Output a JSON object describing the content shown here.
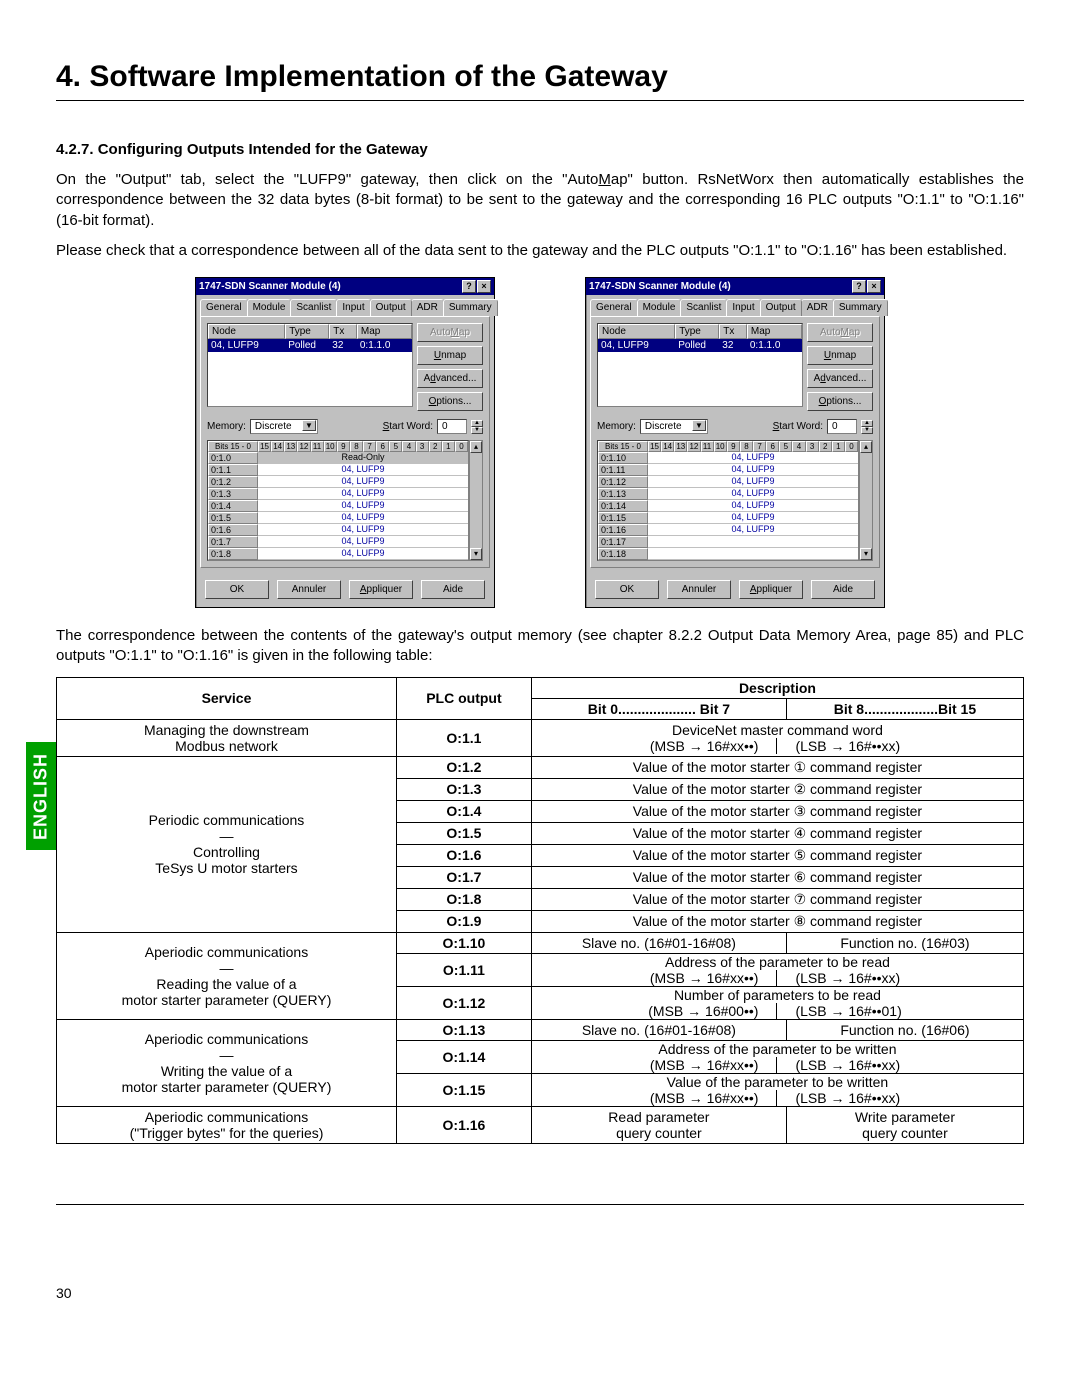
{
  "page": {
    "title": "4. Software Implementation of the Gateway",
    "section_heading": "4.2.7. Configuring Outputs Intended for the Gateway",
    "para1_a": "On the \"Output\" tab, select the \"LUFP9\" gateway, then click on the \"Auto",
    "para1_b": "ap\" button. RsNetWorx then automatically establishes the correspondence between the 32 data bytes (8-bit format) to be sent to the gateway and the corresponding 16 PLC outputs \"O:1.1\" to \"O:1.16\" (16-bit format).",
    "para1_u": "M",
    "para2": "Please check that a correspondence between all of the data sent to the gateway and the PLC outputs \"O:1.1\" to \"O:1.16\" has been established.",
    "side_tab": "ENGLISH",
    "corr_para": "The correspondence between the contents of the gateway's output memory (see chapter 8.2.2 Output Data Memory Area, page 85) and PLC outputs \"O:1.1\" to \"O:1.16\" is given in the following table:",
    "page_number": "30"
  },
  "dialog_common": {
    "title": "1747-SDN Scanner Module (4)",
    "help_btn": "?",
    "close_btn": "×",
    "tabs": [
      "General",
      "Module",
      "Scanlist",
      "Input",
      "Output",
      "ADR",
      "Summary"
    ],
    "active_tab_index": 4,
    "node_head": [
      "Node",
      "Type",
      "Tx",
      "Map"
    ],
    "node_row": [
      "04, LUFP9",
      "Polled",
      "32",
      "0:1.1.0"
    ],
    "btns": {
      "automap": "AutoMap",
      "unmap": "Unmap",
      "advanced": "Advanced...",
      "options": "Options..."
    },
    "memory_label": "Memory:",
    "memory_value": "Discrete",
    "startword_label": "Start Word:",
    "startword_value": "0",
    "bits_label": "Bits 15 - 0",
    "bits": [
      "15",
      "14",
      "13",
      "12",
      "11",
      "10",
      "9",
      "8",
      "7",
      "6",
      "5",
      "4",
      "3",
      "2",
      "1",
      "0"
    ],
    "footer": [
      "OK",
      "Annuler",
      "Appliquer",
      "Aide"
    ]
  },
  "dialog_left": {
    "rows": [
      {
        "label": "0:1.0",
        "val": "Read-Only",
        "readonly": true
      },
      {
        "label": "0:1.1",
        "val": "04, LUFP9"
      },
      {
        "label": "0:1.2",
        "val": "04, LUFP9"
      },
      {
        "label": "0:1.3",
        "val": "04, LUFP9"
      },
      {
        "label": "0:1.4",
        "val": "04, LUFP9"
      },
      {
        "label": "0:1.5",
        "val": "04, LUFP9"
      },
      {
        "label": "0:1.6",
        "val": "04, LUFP9"
      },
      {
        "label": "0:1.7",
        "val": "04, LUFP9"
      },
      {
        "label": "0:1.8",
        "val": "04, LUFP9"
      }
    ]
  },
  "dialog_right": {
    "rows": [
      {
        "label": "0:1.10",
        "val": "04, LUFP9"
      },
      {
        "label": "0:1.11",
        "val": "04, LUFP9"
      },
      {
        "label": "0:1.12",
        "val": "04, LUFP9"
      },
      {
        "label": "0:1.13",
        "val": "04, LUFP9"
      },
      {
        "label": "0:1.14",
        "val": "04, LUFP9"
      },
      {
        "label": "0:1.15",
        "val": "04, LUFP9"
      },
      {
        "label": "0:1.16",
        "val": "04, LUFP9"
      },
      {
        "label": "0:1.17",
        "val": ""
      },
      {
        "label": "0:1.18",
        "val": ""
      }
    ]
  },
  "table": {
    "head": {
      "service": "Service",
      "plc": "PLC output",
      "desc": "Description",
      "bit07": "Bit 0.................... Bit 7",
      "bit815": "Bit 8...................Bit 15"
    },
    "groups": [
      {
        "service_lines": [
          "Managing the downstream",
          "Modbus network"
        ],
        "rows": [
          {
            "plc": "O:1.1",
            "top": "DeviceNet master command word",
            "left": "(MSB → 16#xx••)",
            "right": "(LSB → 16#••xx)"
          }
        ]
      },
      {
        "service_lines": [
          "Periodic communications",
          "—",
          "Controlling",
          "TeSys U motor starters"
        ],
        "rows": [
          {
            "plc": "O:1.2",
            "full": "Value of the motor starter ① command register"
          },
          {
            "plc": "O:1.3",
            "full": "Value of the motor starter ② command register"
          },
          {
            "plc": "O:1.4",
            "full": "Value of the motor starter ③ command register"
          },
          {
            "plc": "O:1.5",
            "full": "Value of the motor starter ④ command register"
          },
          {
            "plc": "O:1.6",
            "full": "Value of the motor starter ⑤ command register"
          },
          {
            "plc": "O:1.7",
            "full": "Value of the motor starter ⑥ command register"
          },
          {
            "plc": "O:1.8",
            "full": "Value of the motor starter ⑦ command register"
          },
          {
            "plc": "O:1.9",
            "full": "Value of the motor starter ⑧ command register"
          }
        ]
      },
      {
        "service_lines": [
          "Aperiodic communications",
          "—",
          "Reading the value of a",
          "motor starter parameter (QUERY)"
        ],
        "rows": [
          {
            "plc": "O:1.10",
            "left": "Slave no. (16#01-16#08)",
            "right": "Function no. (16#03)",
            "split_only": true
          },
          {
            "plc": "O:1.11",
            "top": "Address of the parameter to be read",
            "left": "(MSB → 16#xx••)",
            "right": "(LSB → 16#••xx)"
          },
          {
            "plc": "O:1.12",
            "top": "Number of parameters to be read",
            "left": "(MSB → 16#00••)",
            "right": "(LSB → 16#••01)"
          }
        ]
      },
      {
        "service_lines": [
          "Aperiodic communications",
          "—",
          "Writing the value of a",
          "motor starter parameter (QUERY)"
        ],
        "rows": [
          {
            "plc": "O:1.13",
            "left": "Slave no. (16#01-16#08)",
            "right": "Function no. (16#06)",
            "split_only": true
          },
          {
            "plc": "O:1.14",
            "top": "Address of the parameter to be written",
            "left": "(MSB → 16#xx••)",
            "right": "(LSB → 16#••xx)"
          },
          {
            "plc": "O:1.15",
            "top": "Value of the parameter to be written",
            "left": "(MSB → 16#xx••)",
            "right": "(LSB → 16#••xx)"
          }
        ]
      },
      {
        "service_lines": [
          "Aperiodic communications",
          "(\"Trigger bytes\" for the queries)"
        ],
        "rows": [
          {
            "plc": "O:1.16",
            "left": "Read parameter",
            "right": "Write parameter",
            "left2": "query counter",
            "right2": "query counter",
            "stack": true
          }
        ]
      }
    ]
  }
}
